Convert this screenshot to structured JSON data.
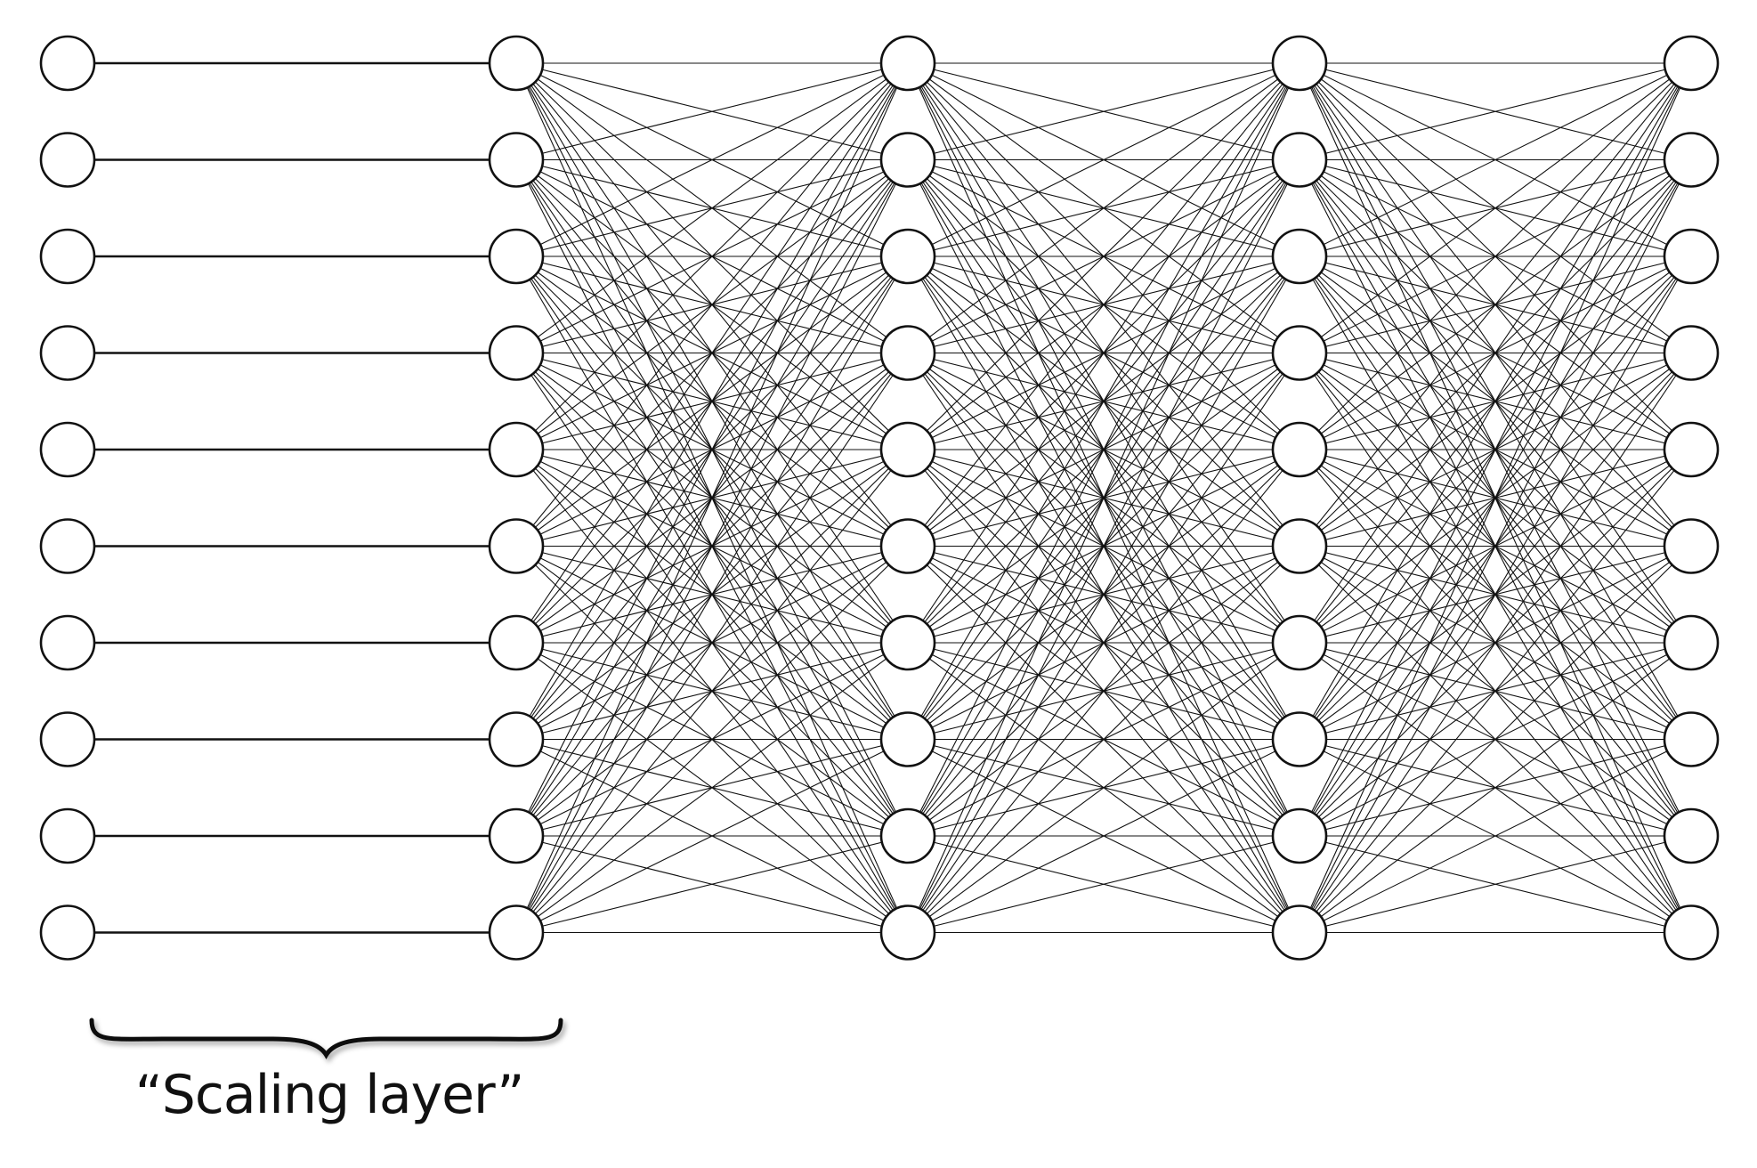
{
  "network": {
    "layers": [
      {
        "nodes": 10
      },
      {
        "nodes": 10
      },
      {
        "nodes": 10
      },
      {
        "nodes": 10
      },
      {
        "nodes": 10
      }
    ],
    "connections": [
      {
        "from_layer": 0,
        "to_layer": 1,
        "pattern": "one-to-one"
      },
      {
        "from_layer": 1,
        "to_layer": 2,
        "pattern": "fully-connected"
      },
      {
        "from_layer": 2,
        "to_layer": 3,
        "pattern": "fully-connected"
      },
      {
        "from_layer": 3,
        "to_layer": 4,
        "pattern": "fully-connected"
      }
    ]
  },
  "annotation": {
    "label": "“Scaling layer”",
    "spans_layers": [
      0,
      1
    ],
    "marker": "curly-brace"
  },
  "colors": {
    "stroke": "#111111",
    "node_fill": "#ffffff",
    "background": "#ffffff"
  }
}
